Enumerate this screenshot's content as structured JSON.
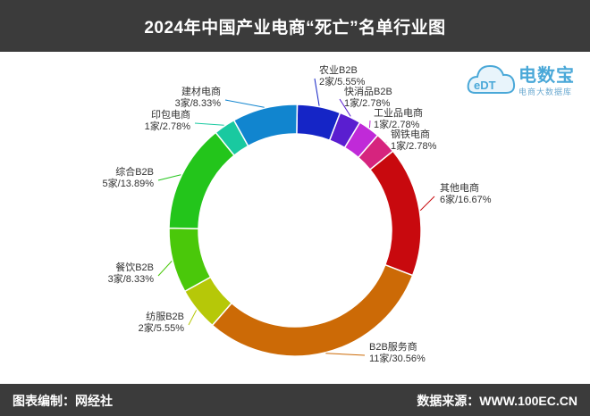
{
  "title": "2024年中国产业电商“死亡”名单行业图",
  "footer": {
    "left": "图表编制：网经社",
    "right": "数据来源：WWW.100EC.CN"
  },
  "logo": {
    "brand": "电数宝",
    "sub": "电商大数据库",
    "mark": "eDT"
  },
  "chart_data": {
    "type": "pie",
    "variant": "donut",
    "title": "2024年中国产业电商“死亡”名单行业图",
    "unit": "家",
    "total": 36,
    "slices": [
      {
        "name": "农业B2B",
        "count": 2,
        "label": "2家/5.55%",
        "percent": 5.55,
        "color": "#1525c6"
      },
      {
        "name": "快消品B2B",
        "count": 1,
        "label": "1家/2.78%",
        "percent": 2.78,
        "color": "#5a1ed0"
      },
      {
        "name": "工业品电商",
        "count": 1,
        "label": "1家/2.78%",
        "percent": 2.78,
        "color": "#c02ad8"
      },
      {
        "name": "钢铁电商",
        "count": 1,
        "label": "1家/2.78%",
        "percent": 2.78,
        "color": "#d6247e"
      },
      {
        "name": "其他电商",
        "count": 6,
        "label": "6家/16.67%",
        "percent": 16.67,
        "color": "#c8090e"
      },
      {
        "name": "B2B服务商",
        "count": 11,
        "label": "11家/30.56%",
        "percent": 30.56,
        "color": "#cc6a06"
      },
      {
        "name": "纺服B2B",
        "count": 2,
        "label": "2家/5.55%",
        "percent": 5.55,
        "color": "#b6c808"
      },
      {
        "name": "餐饮B2B",
        "count": 3,
        "label": "3家/8.33%",
        "percent": 8.33,
        "color": "#4ac80a"
      },
      {
        "name": "综合B2B",
        "count": 5,
        "label": "5家/13.89%",
        "percent": 13.89,
        "color": "#23c51b"
      },
      {
        "name": "印包电商",
        "count": 1,
        "label": "1家/2.78%",
        "percent": 2.78,
        "color": "#19c9a0"
      },
      {
        "name": "建材电商",
        "count": 3,
        "label": "3家/8.33%",
        "percent": 8.33,
        "color": "#1185cf"
      }
    ]
  }
}
